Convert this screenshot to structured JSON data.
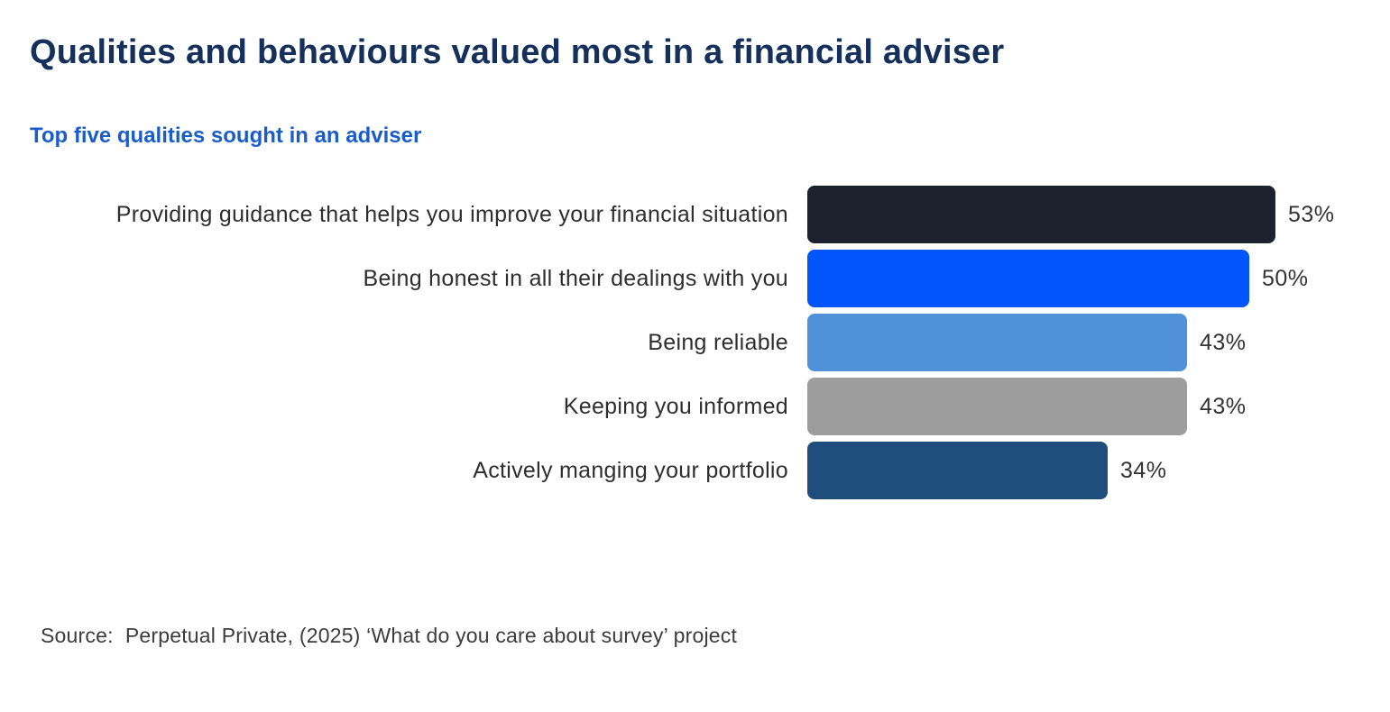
{
  "header": {
    "title": "Qualities and behaviours valued most in a financial adviser",
    "subtitle": "Top five qualities sought in an adviser"
  },
  "chart_data": {
    "type": "bar",
    "orientation": "horizontal",
    "title": "Qualities and behaviours valued most in a financial adviser",
    "subtitle": "Top five qualities sought in an adviser",
    "categories": [
      "Providing guidance that helps you improve your financial situation",
      "Being honest in all their dealings with you",
      "Being reliable",
      "Keeping you informed",
      "Actively manging your portfolio"
    ],
    "values": [
      53,
      50,
      43,
      43,
      34
    ],
    "value_labels": [
      "53%",
      "50%",
      "43%",
      "43%",
      "34%"
    ],
    "bar_colors": [
      "#1e222e",
      "#0056fa",
      "#4f92d9",
      "#9d9d9d",
      "#1f4e7d"
    ],
    "unit": "%",
    "xlim": [
      0,
      53
    ],
    "grid": false,
    "legend": false,
    "value_label_position": "right-of-bar",
    "category_label_position": "left-of-bar"
  },
  "footer": {
    "source": "Source:  Perpetual Private, (2025) ‘What do you care about survey’ project"
  },
  "colors": {
    "title_text": "#16305c",
    "subtitle_text": "#1a5dc8",
    "category_text": "#2e2e2e",
    "value_text": "#333333",
    "source_text": "#3c3c3c",
    "background": "#ffffff"
  }
}
